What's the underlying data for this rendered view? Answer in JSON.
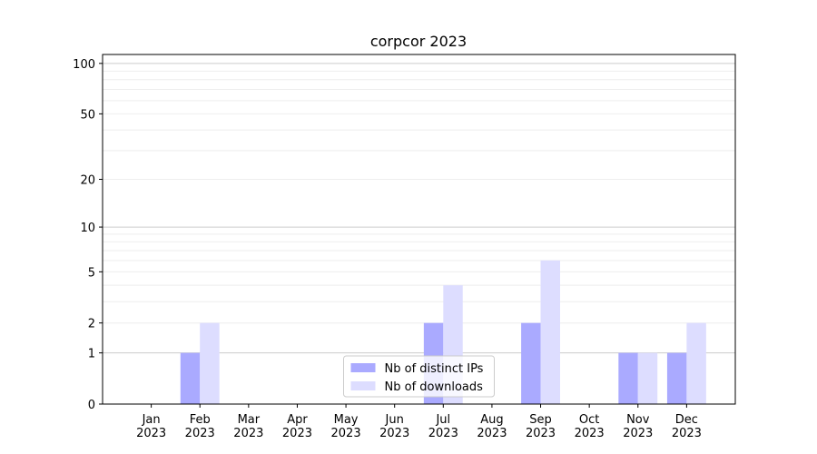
{
  "chart_data": {
    "type": "bar",
    "title": "corpcor 2023",
    "categories": [
      "Jan\n2023",
      "Feb\n2023",
      "Mar\n2023",
      "Apr\n2023",
      "May\n2023",
      "Jun\n2023",
      "Jul\n2023",
      "Aug\n2023",
      "Sep\n2023",
      "Oct\n2023",
      "Nov\n2023",
      "Dec\n2023"
    ],
    "series": [
      {
        "name": "Nb of distinct IPs",
        "color": "#aaaaff",
        "values": [
          0,
          1,
          0,
          0,
          0,
          0,
          2,
          0,
          2,
          0,
          1,
          1
        ]
      },
      {
        "name": "Nb of downloads",
        "color": "#ddddff",
        "values": [
          0,
          2,
          0,
          0,
          0,
          0,
          4,
          0,
          6,
          0,
          1,
          2
        ]
      }
    ],
    "yscale": "log1p",
    "ylim": [
      0,
      113
    ],
    "yticks": [
      0,
      1,
      2,
      5,
      10,
      20,
      50,
      100
    ],
    "major_grid": [
      1,
      10,
      100
    ],
    "minor_grid": [
      2,
      3,
      4,
      5,
      6,
      7,
      8,
      9,
      20,
      30,
      40,
      50,
      60,
      70,
      80,
      90
    ],
    "legend": "lower center"
  }
}
